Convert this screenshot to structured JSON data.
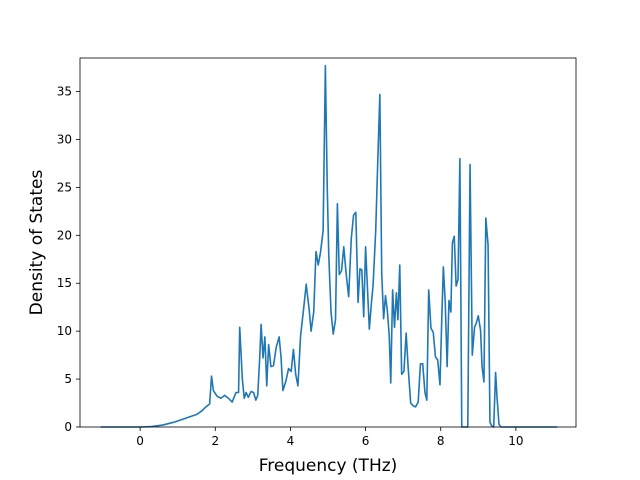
{
  "chart_data": {
    "type": "line",
    "title": "",
    "xlabel": "Frequency (THz)",
    "ylabel": "Density of States",
    "xlim": [
      -1.6,
      11.6
    ],
    "ylim": [
      0,
      38.5
    ],
    "grid": false,
    "x_ticks": [
      0,
      2,
      4,
      6,
      8,
      10
    ],
    "y_ticks": [
      0,
      5,
      10,
      15,
      20,
      25,
      30,
      35
    ],
    "series": [
      {
        "color": "#1f77b4",
        "points": [
          [
            -1.05,
            0
          ],
          [
            -0.5,
            0
          ],
          [
            0.0,
            0
          ],
          [
            0.3,
            0.05
          ],
          [
            0.6,
            0.2
          ],
          [
            0.9,
            0.5
          ],
          [
            1.2,
            0.9
          ],
          [
            1.5,
            1.3
          ],
          [
            1.65,
            1.7
          ],
          [
            1.75,
            2.1
          ],
          [
            1.85,
            2.4
          ],
          [
            1.9,
            5.3
          ],
          [
            1.95,
            3.8
          ],
          [
            2.05,
            3.2
          ],
          [
            2.15,
            3.0
          ],
          [
            2.25,
            3.3
          ],
          [
            2.35,
            3.0
          ],
          [
            2.45,
            2.6
          ],
          [
            2.55,
            3.6
          ],
          [
            2.62,
            3.6
          ],
          [
            2.65,
            10.4
          ],
          [
            2.72,
            5.0
          ],
          [
            2.77,
            3.0
          ],
          [
            2.82,
            3.6
          ],
          [
            2.88,
            3.1
          ],
          [
            2.95,
            3.7
          ],
          [
            3.02,
            3.6
          ],
          [
            3.08,
            2.8
          ],
          [
            3.13,
            3.3
          ],
          [
            3.18,
            7.0
          ],
          [
            3.22,
            10.7
          ],
          [
            3.27,
            7.2
          ],
          [
            3.32,
            9.4
          ],
          [
            3.37,
            4.3
          ],
          [
            3.42,
            8.6
          ],
          [
            3.48,
            6.3
          ],
          [
            3.55,
            6.4
          ],
          [
            3.62,
            8.3
          ],
          [
            3.7,
            9.4
          ],
          [
            3.75,
            7.3
          ],
          [
            3.8,
            3.8
          ],
          [
            3.88,
            4.8
          ],
          [
            3.95,
            6.1
          ],
          [
            4.02,
            5.8
          ],
          [
            4.08,
            8.1
          ],
          [
            4.14,
            5.5
          ],
          [
            4.2,
            4.3
          ],
          [
            4.27,
            9.5
          ],
          [
            4.35,
            12.3
          ],
          [
            4.42,
            14.9
          ],
          [
            4.5,
            12.2
          ],
          [
            4.55,
            10.0
          ],
          [
            4.62,
            12.0
          ],
          [
            4.68,
            18.3
          ],
          [
            4.74,
            16.9
          ],
          [
            4.8,
            18.2
          ],
          [
            4.87,
            20.5
          ],
          [
            4.93,
            37.7
          ],
          [
            4.98,
            25.0
          ],
          [
            5.02,
            18.0
          ],
          [
            5.08,
            12.0
          ],
          [
            5.14,
            9.7
          ],
          [
            5.2,
            11.2
          ],
          [
            5.25,
            23.3
          ],
          [
            5.3,
            15.9
          ],
          [
            5.36,
            16.3
          ],
          [
            5.42,
            18.8
          ],
          [
            5.48,
            16.1
          ],
          [
            5.55,
            13.6
          ],
          [
            5.62,
            19.7
          ],
          [
            5.68,
            22.1
          ],
          [
            5.74,
            22.4
          ],
          [
            5.8,
            13.0
          ],
          [
            5.85,
            16.5
          ],
          [
            5.9,
            16.4
          ],
          [
            5.95,
            11.5
          ],
          [
            6.0,
            18.8
          ],
          [
            6.05,
            14.5
          ],
          [
            6.1,
            10.2
          ],
          [
            6.15,
            12.7
          ],
          [
            6.2,
            14.8
          ],
          [
            6.27,
            20.5
          ],
          [
            6.33,
            28.5
          ],
          [
            6.38,
            34.7
          ],
          [
            6.43,
            16.0
          ],
          [
            6.48,
            11.3
          ],
          [
            6.53,
            13.7
          ],
          [
            6.58,
            12.1
          ],
          [
            6.63,
            9.5
          ],
          [
            6.67,
            4.6
          ],
          [
            6.72,
            14.3
          ],
          [
            6.77,
            10.4
          ],
          [
            6.82,
            14.0
          ],
          [
            6.86,
            11.2
          ],
          [
            6.91,
            16.9
          ],
          [
            6.96,
            5.5
          ],
          [
            7.02,
            5.8
          ],
          [
            7.08,
            9.8
          ],
          [
            7.13,
            6.4
          ],
          [
            7.2,
            2.5
          ],
          [
            7.27,
            2.2
          ],
          [
            7.33,
            2.1
          ],
          [
            7.4,
            2.6
          ],
          [
            7.46,
            6.6
          ],
          [
            7.52,
            6.6
          ],
          [
            7.58,
            3.6
          ],
          [
            7.63,
            2.8
          ],
          [
            7.68,
            14.3
          ],
          [
            7.74,
            10.3
          ],
          [
            7.8,
            9.9
          ],
          [
            7.86,
            7.3
          ],
          [
            7.92,
            7.0
          ],
          [
            7.98,
            4.4
          ],
          [
            8.03,
            11.6
          ],
          [
            8.07,
            16.7
          ],
          [
            8.12,
            13.0
          ],
          [
            8.17,
            6.3
          ],
          [
            8.22,
            13.2
          ],
          [
            8.27,
            12.0
          ],
          [
            8.31,
            19.2
          ],
          [
            8.36,
            19.9
          ],
          [
            8.41,
            14.7
          ],
          [
            8.46,
            15.4
          ],
          [
            8.51,
            28.0
          ],
          [
            8.56,
            0
          ],
          [
            8.72,
            0
          ],
          [
            8.78,
            27.4
          ],
          [
            8.84,
            7.5
          ],
          [
            8.9,
            10.4
          ],
          [
            8.95,
            10.9
          ],
          [
            9.0,
            11.6
          ],
          [
            9.06,
            10.1
          ],
          [
            9.1,
            6.3
          ],
          [
            9.15,
            4.7
          ],
          [
            9.2,
            21.8
          ],
          [
            9.26,
            19.0
          ],
          [
            9.31,
            0.5
          ],
          [
            9.36,
            0.1
          ],
          [
            9.41,
            0
          ],
          [
            9.46,
            5.7
          ],
          [
            9.5,
            3.0
          ],
          [
            9.55,
            0.3
          ],
          [
            9.6,
            0
          ],
          [
            9.9,
            0
          ],
          [
            10.5,
            0
          ],
          [
            11.1,
            0
          ]
        ]
      }
    ]
  }
}
